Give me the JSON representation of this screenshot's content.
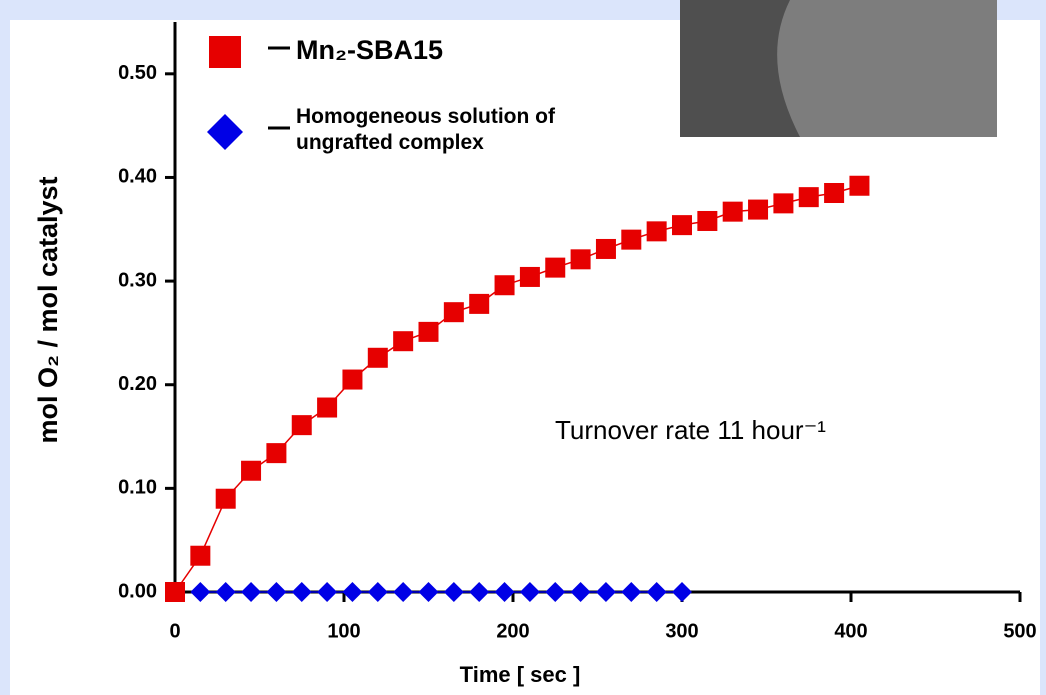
{
  "chart_data": {
    "type": "line",
    "x_label": "Time [ sec ]",
    "y_label": "mol O₂ / mol catalyst",
    "annotation": "Turnover rate 11 hour⁻¹",
    "xlim": [
      0,
      500
    ],
    "xticks": [
      0,
      100,
      200,
      300,
      400,
      500
    ],
    "ylim": [
      0,
      0.55
    ],
    "yticks": [
      {
        "value": 0,
        "label": "0.00"
      },
      {
        "value": 0.1,
        "label": "0.10"
      },
      {
        "value": 0.2,
        "label": "0.20"
      },
      {
        "value": 0.3,
        "label": "0.30"
      },
      {
        "value": 0.4,
        "label": "0.40"
      },
      {
        "value": 0.5,
        "label": "0.50"
      }
    ],
    "series": [
      {
        "name": "Mn₂-SBA15",
        "color": "#e60000",
        "marker": "square",
        "x": [
          0,
          15,
          30,
          45,
          60,
          75,
          90,
          105,
          120,
          135,
          150,
          165,
          180,
          195,
          210,
          225,
          240,
          255,
          270,
          285,
          300,
          315,
          330,
          345,
          360,
          375,
          390,
          405
        ],
        "values": [
          0,
          0.035,
          0.09,
          0.117,
          0.134,
          0.161,
          0.178,
          0.205,
          0.226,
          0.242,
          0.251,
          0.27,
          0.278,
          0.296,
          0.304,
          0.313,
          0.321,
          0.331,
          0.34,
          0.348,
          0.354,
          0.358,
          0.367,
          0.369,
          0.375,
          0.381,
          0.385,
          0.392
        ]
      },
      {
        "name": "Homogeneous solution of ungrafted complex",
        "color": "#0000e6",
        "marker": "diamond",
        "x": [
          15,
          30,
          45,
          60,
          75,
          90,
          105,
          120,
          135,
          150,
          165,
          180,
          195,
          210,
          225,
          240,
          255,
          270,
          285,
          300
        ],
        "values": [
          0,
          0,
          0,
          0,
          0,
          0,
          0,
          0,
          0,
          0,
          0,
          0,
          0,
          0,
          0,
          0,
          0,
          0,
          0,
          0
        ]
      }
    ]
  }
}
